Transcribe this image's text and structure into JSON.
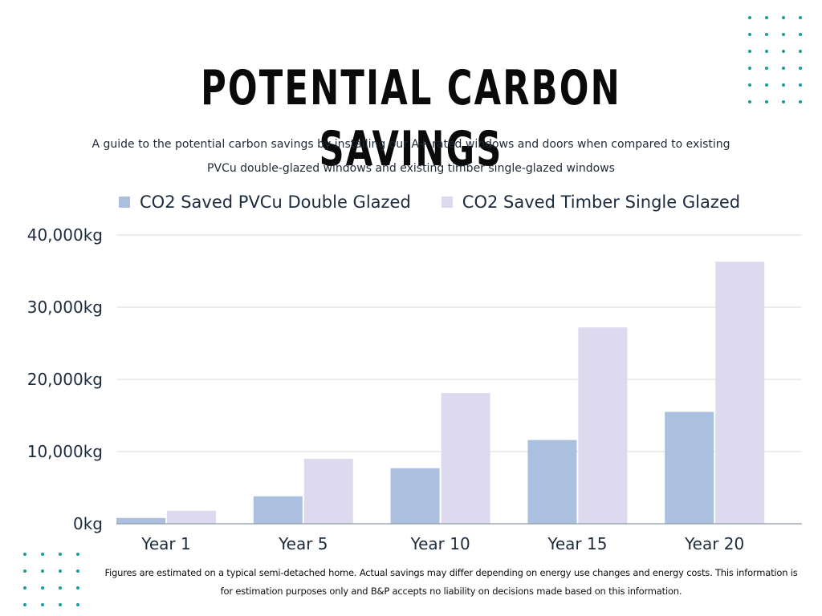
{
  "title": "POTENTIAL CARBON SAVINGS",
  "subtitle": {
    "line1": "A guide to the potential carbon savings by installing our A+ rated windows and doors when compared to existing",
    "line2": "PVCu double-glazed windows and existing timber single-glazed windows"
  },
  "footnote": {
    "line1": "Figures are estimated on a typical semi-detached home. Actual savings may differ depending on energy use changes and energy costs. This information is",
    "line2": "for estimation purposes only and B&P accepts no liability on decisions made based on this information."
  },
  "colors": {
    "series1": "#abbfde",
    "series2": "#dddaf0",
    "accent_dots": "#1b9a9a",
    "gridline": "#d9d9d9"
  },
  "chart_data": {
    "type": "bar",
    "categories": [
      "Year 1",
      "Year 5",
      "Year 10",
      "Year 15",
      "Year 20"
    ],
    "series": [
      {
        "name": "CO2 Saved PVCu Double Glazed",
        "values": [
          800,
          3800,
          7700,
          11600,
          15500
        ]
      },
      {
        "name": "CO2 Saved Timber Single Glazed",
        "values": [
          1800,
          9000,
          18100,
          27200,
          36300
        ]
      }
    ],
    "y_ticks": [
      0,
      10000,
      20000,
      30000,
      40000
    ],
    "y_tick_labels": [
      "0kg",
      "10,000kg",
      "20,000kg",
      "30,000kg",
      "40,000kg"
    ],
    "ylim": [
      0,
      40000
    ],
    "grid": true,
    "legend_position": "top"
  }
}
